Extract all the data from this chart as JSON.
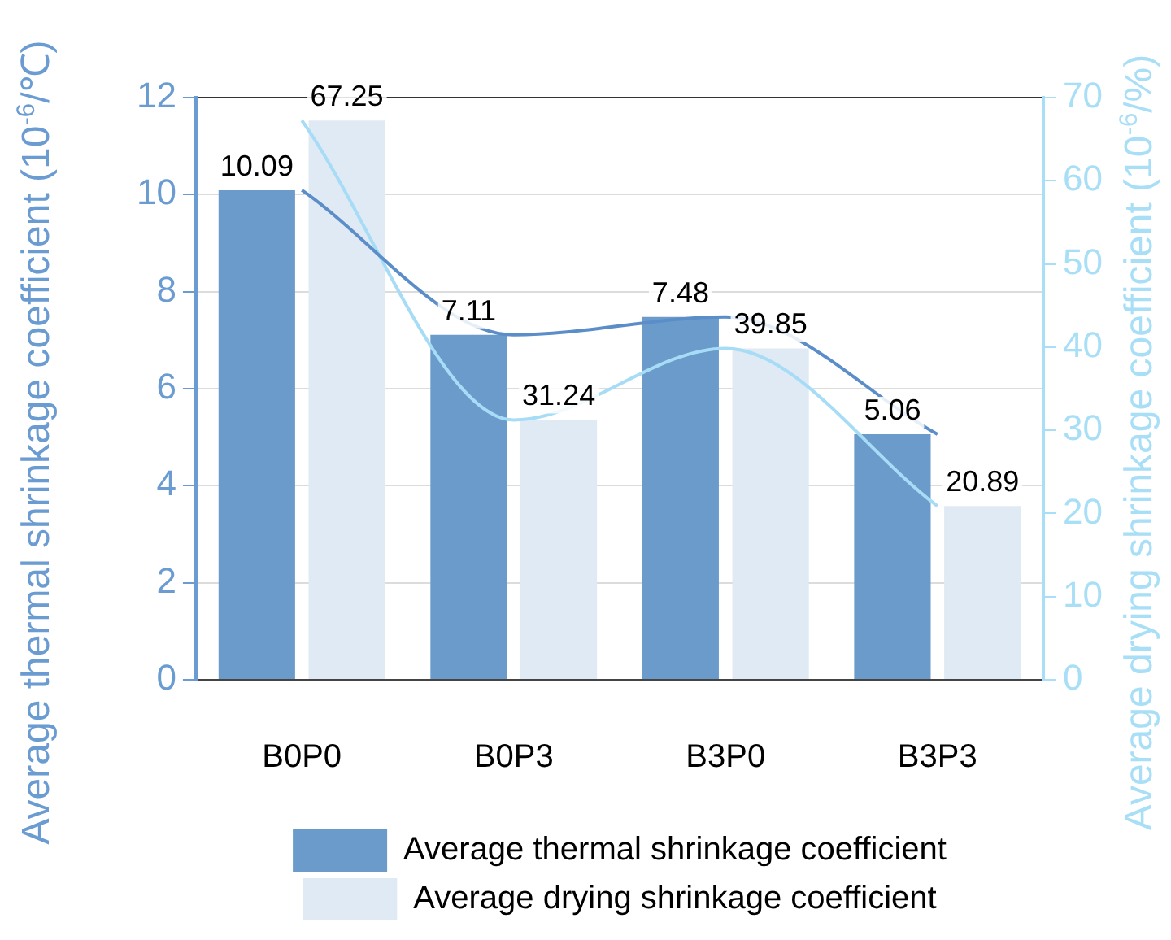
{
  "chart_data": {
    "type": "bar",
    "categories": [
      "B0P0",
      "B0P3",
      "B3P0",
      "B3P3"
    ],
    "ylabel": "Average thermal shrinkage coefficient (10$^{-6}$/℃)",
    "y2label": "Average drying shrinkage coefficient (10$^{-6}$/%)",
    "series": [
      {
        "name": "Average thermal shrinkage coefficient",
        "color": "#6a9bcb",
        "values": [
          10.09,
          7.11,
          7.48,
          5.06
        ],
        "value_labels": [
          "10.09",
          "7.11",
          "7.48",
          "5.06"
        ]
      },
      {
        "name": "Average drying shrinkage coefficient",
        "axis": "y2",
        "color": "#e0eaf4",
        "values": [
          67.25,
          31.24,
          39.85,
          20.89
        ],
        "value_labels": [
          "67.25",
          "31.24",
          "39.85",
          "20.89"
        ]
      },
      {
        "type": "line",
        "color": "#5b8ec9",
        "values": [
          10.09,
          7.11,
          7.48,
          5.06
        ]
      },
      {
        "type": "line",
        "axis": "y2",
        "color": "#a6dcf5",
        "values": [
          67.25,
          31.24,
          39.85,
          20.89
        ]
      }
    ],
    "ylim": [
      0,
      12
    ],
    "yticks": [
      0,
      2,
      4,
      6,
      8,
      10,
      12
    ],
    "y2lim": [
      0,
      70
    ],
    "y2ticks": [
      0,
      10,
      20,
      30,
      40,
      50,
      60,
      70
    ],
    "grid": "y",
    "legend": "bottom",
    "marker": "none"
  }
}
